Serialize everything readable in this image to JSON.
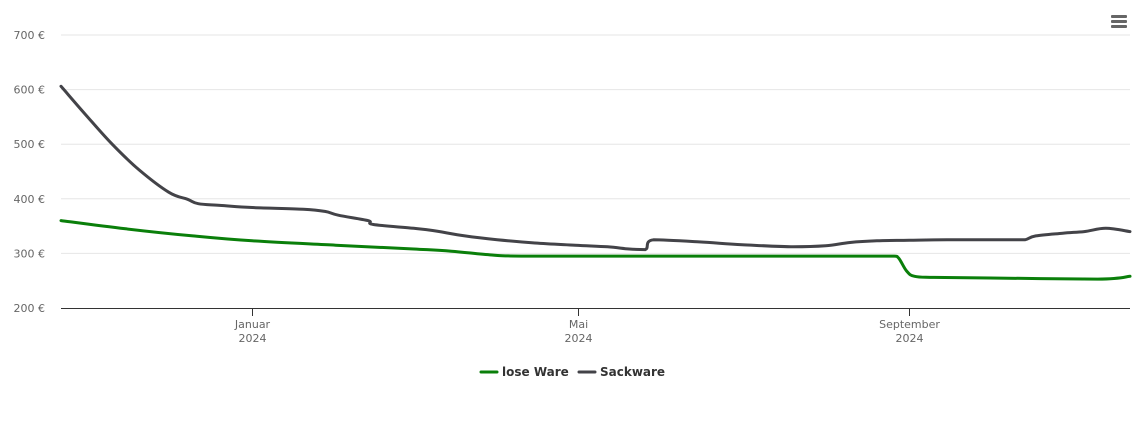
{
  "chart_data": {
    "type": "line",
    "x_type": "datetime",
    "ylim": [
      200,
      700
    ],
    "y_ticks": [
      200,
      300,
      400,
      500,
      600,
      700
    ],
    "y_tick_format": "{v} €",
    "x_range": [
      "2023-10-22",
      "2024-11-22"
    ],
    "x_ticks": [
      {
        "date": "2024-01-01",
        "label": "Januar",
        "year": "2024"
      },
      {
        "date": "2024-05-01",
        "label": "Mai",
        "year": "2024"
      },
      {
        "date": "2024-09-01",
        "label": "September",
        "year": "2024"
      }
    ],
    "grid": true,
    "legend_position": "bottom-center",
    "series": [
      {
        "name": "lose Ware",
        "color": "#0a7f0a",
        "points": [
          [
            "2023-10-22",
            360
          ],
          [
            "2023-11-15",
            345
          ],
          [
            "2023-12-10",
            332
          ],
          [
            "2024-01-01",
            323
          ],
          [
            "2024-02-01",
            315
          ],
          [
            "2024-03-01",
            308
          ],
          [
            "2024-03-15",
            304
          ],
          [
            "2024-03-30",
            297
          ],
          [
            "2024-04-10",
            295
          ],
          [
            "2024-05-15",
            295
          ],
          [
            "2024-06-15",
            295
          ],
          [
            "2024-07-15",
            295
          ],
          [
            "2024-08-15",
            295
          ],
          [
            "2024-08-26",
            295
          ],
          [
            "2024-08-28",
            292
          ],
          [
            "2024-08-31",
            268
          ],
          [
            "2024-09-03",
            258
          ],
          [
            "2024-09-10",
            256
          ],
          [
            "2024-10-01",
            255
          ],
          [
            "2024-11-10",
            253
          ],
          [
            "2024-11-22",
            258
          ]
        ]
      },
      {
        "name": "Sackware",
        "color": "#434348",
        "points": [
          [
            "2023-10-22",
            606
          ],
          [
            "2023-10-31",
            555
          ],
          [
            "2023-11-10",
            500
          ],
          [
            "2023-11-20",
            453
          ],
          [
            "2023-12-01",
            412
          ],
          [
            "2023-12-08",
            399
          ],
          [
            "2023-12-12",
            391
          ],
          [
            "2023-12-20",
            388
          ],
          [
            "2024-01-01",
            384
          ],
          [
            "2024-01-20",
            381
          ],
          [
            "2024-01-28",
            377
          ],
          [
            "2024-02-02",
            370
          ],
          [
            "2024-02-13",
            360
          ],
          [
            "2024-02-15",
            353
          ],
          [
            "2024-03-01",
            346
          ],
          [
            "2024-03-08",
            342
          ],
          [
            "2024-03-20",
            332
          ],
          [
            "2024-04-01",
            325
          ],
          [
            "2024-04-15",
            319
          ],
          [
            "2024-04-30",
            315
          ],
          [
            "2024-05-12",
            312
          ],
          [
            "2024-05-20",
            308
          ],
          [
            "2024-05-26",
            307
          ],
          [
            "2024-05-29",
            325
          ],
          [
            "2024-06-15",
            321
          ],
          [
            "2024-07-01",
            316
          ],
          [
            "2024-07-20",
            312
          ],
          [
            "2024-08-01",
            314
          ],
          [
            "2024-08-10",
            320
          ],
          [
            "2024-08-20",
            323
          ],
          [
            "2024-09-01",
            324
          ],
          [
            "2024-09-15",
            325
          ],
          [
            "2024-10-10",
            325
          ],
          [
            "2024-10-14",
            325
          ],
          [
            "2024-10-18",
            332
          ],
          [
            "2024-10-28",
            337
          ],
          [
            "2024-11-05",
            340
          ],
          [
            "2024-11-13",
            346
          ],
          [
            "2024-11-22",
            340
          ]
        ]
      }
    ]
  },
  "menu": {
    "icon": "hamburger-menu-icon"
  }
}
